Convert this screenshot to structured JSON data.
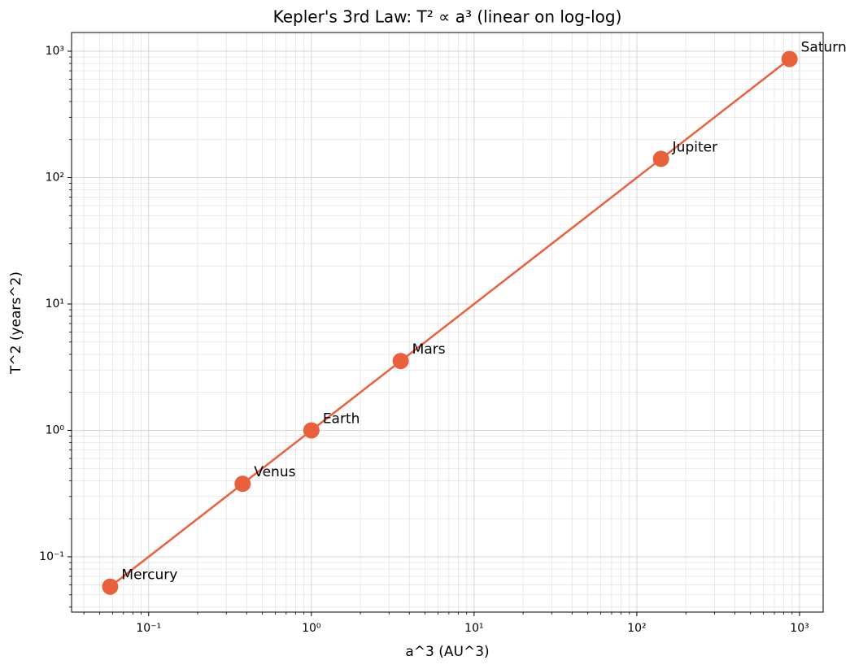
{
  "chart_data": {
    "type": "line",
    "title": "Kepler's 3rd Law: T² ∝ a³ (linear on log-log)",
    "xlabel": "a^3 (AU^3)",
    "ylabel": "T^2 (years^2)",
    "xscale": "log",
    "yscale": "log",
    "grid": true,
    "minor_grid": true,
    "color": "#e8603c",
    "x": [
      0.058,
      0.378,
      1,
      3.54,
      140.8,
      867.4
    ],
    "values": [
      0.058,
      0.378,
      1,
      3.54,
      140.7,
      867.9
    ],
    "point_labels": [
      "Mercury",
      "Venus",
      "Earth",
      "Mars",
      "Jupiter",
      "Saturn"
    ],
    "xlim": [
      0.0336,
      1396
    ],
    "ylim": [
      0.0365,
      1406
    ],
    "xticks": [
      {
        "value": 0.1,
        "label": "10⁻¹"
      },
      {
        "value": 1,
        "label": "10⁰"
      },
      {
        "value": 10,
        "label": "10¹"
      },
      {
        "value": 100,
        "label": "10²"
      },
      {
        "value": 1000,
        "label": "10³"
      }
    ],
    "yticks": [
      {
        "value": 0.1,
        "label": "10⁻¹"
      },
      {
        "value": 1,
        "label": "10⁰"
      },
      {
        "value": 10,
        "label": "10¹"
      },
      {
        "value": 100,
        "label": "10²"
      },
      {
        "value": 1000,
        "label": "10³"
      }
    ]
  }
}
